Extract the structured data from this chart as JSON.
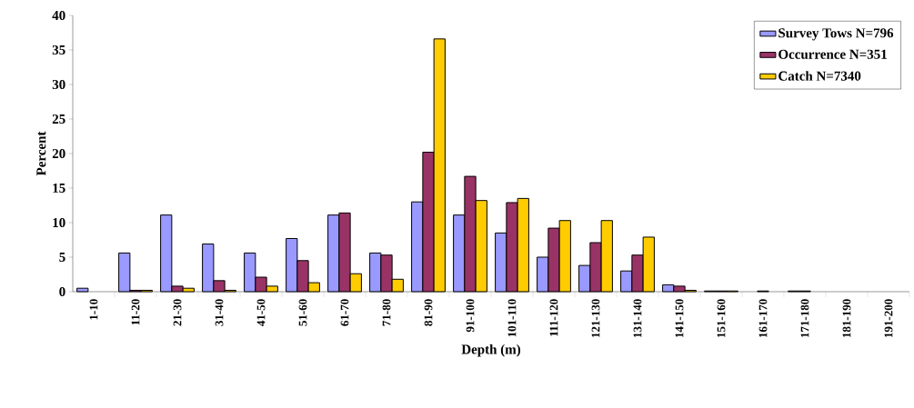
{
  "chart_data": {
    "type": "bar",
    "xlabel": "Depth (m)",
    "ylabel": "Percent",
    "categories": [
      "1-10",
      "11-20",
      "21-30",
      "31-40",
      "41-50",
      "51-60",
      "61-70",
      "71-80",
      "81-90",
      "91-100",
      "101-110",
      "111-120",
      "121-130",
      "131-140",
      "141-150",
      "151-160",
      "161-170",
      "171-180",
      "181-190",
      "191-200"
    ],
    "series": [
      {
        "name": "Survey Tows N=796",
        "color": "#9999ff",
        "values": [
          0.5,
          5.6,
          11.1,
          6.9,
          5.6,
          7.7,
          11.1,
          5.6,
          13.0,
          11.1,
          8.5,
          5.0,
          3.8,
          3.0,
          1.0,
          0.1,
          0,
          0.1,
          0,
          0
        ]
      },
      {
        "name": "Occurrence N=351",
        "color": "#993366",
        "values": [
          0,
          0.2,
          0.8,
          1.6,
          2.1,
          4.5,
          11.4,
          5.3,
          20.2,
          16.7,
          12.9,
          9.2,
          7.1,
          5.3,
          0.8,
          0.1,
          0.1,
          0.1,
          0,
          0
        ]
      },
      {
        "name": "Catch N=7340",
        "color": "#ffcc00",
        "values": [
          0,
          0.2,
          0.5,
          0.2,
          0.8,
          1.3,
          2.6,
          1.8,
          36.6,
          13.2,
          13.5,
          10.3,
          10.3,
          7.9,
          0.2,
          0.1,
          0,
          0,
          0,
          0
        ]
      }
    ],
    "ylim": [
      0,
      40
    ],
    "yticks": [
      0,
      5,
      10,
      15,
      20,
      25,
      30,
      35,
      40
    ],
    "grid": false,
    "legend": "top right"
  }
}
